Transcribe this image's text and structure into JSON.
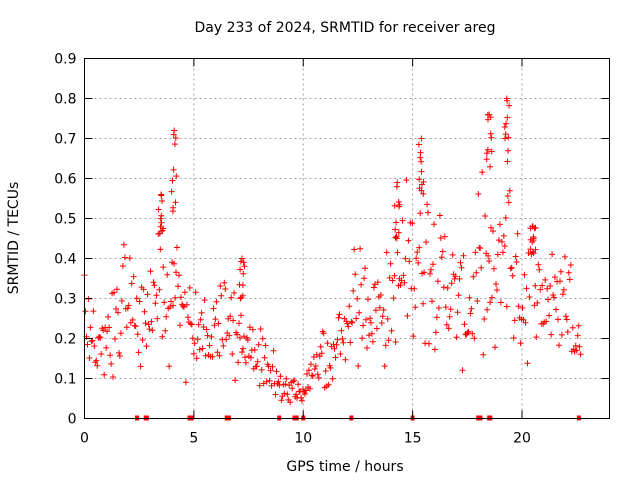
{
  "chart_data": {
    "type": "scatter",
    "title": "Day 233 of 2024, SRMTID for receiver areg",
    "xlabel": "GPS time / hours",
    "ylabel": "SRMTID / TECUs",
    "xlim": [
      0,
      24
    ],
    "ylim": [
      0,
      0.9
    ],
    "x_ticks": [
      0,
      5,
      10,
      15,
      20
    ],
    "x_tick_labels": [
      "0",
      "5",
      "10",
      "15",
      "20"
    ],
    "y_ticks": [
      0,
      0.1,
      0.2,
      0.3,
      0.4,
      0.5,
      0.6,
      0.7,
      0.8,
      0.9
    ],
    "y_tick_labels": [
      "0",
      "0.1",
      "0.2",
      "0.3",
      "0.4",
      "0.5",
      "0.6",
      "0.7",
      "0.8",
      "0.9"
    ],
    "grid": true,
    "marker": "+",
    "series_color": "#ff0000",
    "zero_value_times_h": [
      2.4,
      2.8,
      2.85,
      4.8,
      4.9,
      6.5,
      6.6,
      8.9,
      9.6,
      9.7,
      10.0,
      12.2,
      15.0,
      18.0,
      18.1,
      18.5,
      18.55,
      22.6
    ],
    "envelope": [
      {
        "x": 0.0,
        "y": 0.28
      },
      {
        "x": 0.3,
        "y": 0.22
      },
      {
        "x": 0.8,
        "y": 0.2
      },
      {
        "x": 1.2,
        "y": 0.2
      },
      {
        "x": 1.6,
        "y": 0.28
      },
      {
        "x": 1.9,
        "y": 0.3
      },
      {
        "x": 2.5,
        "y": 0.28
      },
      {
        "x": 3.0,
        "y": 0.26
      },
      {
        "x": 3.4,
        "y": 0.38
      },
      {
        "x": 3.7,
        "y": 0.3
      },
      {
        "x": 4.0,
        "y": 0.35
      },
      {
        "x": 4.4,
        "y": 0.25
      },
      {
        "x": 5.0,
        "y": 0.22
      },
      {
        "x": 5.8,
        "y": 0.2
      },
      {
        "x": 6.5,
        "y": 0.25
      },
      {
        "x": 7.2,
        "y": 0.18
      },
      {
        "x": 8.0,
        "y": 0.15
      },
      {
        "x": 8.6,
        "y": 0.11
      },
      {
        "x": 9.2,
        "y": 0.07
      },
      {
        "x": 9.8,
        "y": 0.05
      },
      {
        "x": 10.3,
        "y": 0.1
      },
      {
        "x": 10.8,
        "y": 0.16
      },
      {
        "x": 11.3,
        "y": 0.15
      },
      {
        "x": 11.8,
        "y": 0.2
      },
      {
        "x": 12.3,
        "y": 0.28
      },
      {
        "x": 13.0,
        "y": 0.28
      },
      {
        "x": 13.8,
        "y": 0.28
      },
      {
        "x": 14.5,
        "y": 0.35
      },
      {
        "x": 15.0,
        "y": 0.42
      },
      {
        "x": 15.5,
        "y": 0.45
      },
      {
        "x": 16.3,
        "y": 0.35
      },
      {
        "x": 17.0,
        "y": 0.3
      },
      {
        "x": 17.5,
        "y": 0.25
      },
      {
        "x": 18.2,
        "y": 0.4
      },
      {
        "x": 18.8,
        "y": 0.3
      },
      {
        "x": 19.3,
        "y": 0.5
      },
      {
        "x": 19.8,
        "y": 0.3
      },
      {
        "x": 20.5,
        "y": 0.35
      },
      {
        "x": 21.0,
        "y": 0.3
      },
      {
        "x": 21.6,
        "y": 0.3
      },
      {
        "x": 22.2,
        "y": 0.3
      },
      {
        "x": 22.6,
        "y": 0.18
      }
    ],
    "peaks": [
      {
        "x": 4.1,
        "y": 0.72
      },
      {
        "x": 3.5,
        "y": 0.56
      },
      {
        "x": 7.2,
        "y": 0.4
      },
      {
        "x": 14.3,
        "y": 0.59
      },
      {
        "x": 15.4,
        "y": 0.7
      },
      {
        "x": 18.5,
        "y": 0.76
      },
      {
        "x": 19.3,
        "y": 0.8
      },
      {
        "x": 20.5,
        "y": 0.48
      }
    ],
    "data_end_h": 22.7
  }
}
